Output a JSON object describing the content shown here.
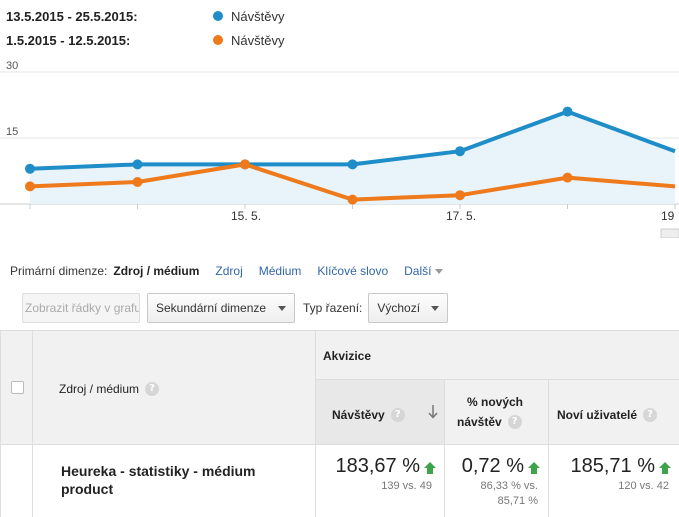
{
  "legend": [
    {
      "range": "13.5.2015 - 25.5.2015:",
      "label": "Návštěvy",
      "color": "#1f8dc7"
    },
    {
      "range": "1.5.2015 - 12.5.2015:",
      "label": "Návštěvy",
      "color": "#ee7a1b"
    }
  ],
  "chart_data": {
    "type": "line",
    "y_ticks": [
      "30",
      "15"
    ],
    "ylim": [
      0,
      30
    ],
    "x_ticks": [
      "15. 5.",
      "17. 5.",
      "19"
    ],
    "grid": true,
    "series": [
      {
        "values": [
          8,
          9,
          9,
          9,
          12,
          21,
          12
        ],
        "color": "#1f8dc7",
        "area": true
      },
      {
        "values": [
          4,
          5,
          9,
          1,
          2,
          6,
          4
        ],
        "color": "#ee7a1b",
        "area": false
      }
    ]
  },
  "dimensions": {
    "label": "Primární dimenze:",
    "active": "Zdroj / médium",
    "links": [
      "Zdroj",
      "Médium",
      "Klíčové slovo"
    ],
    "more": "Další"
  },
  "toolbar": {
    "plot_rows": "Zobrazit řádky v grafu",
    "secondary": "Sekundární dimenze",
    "sort_label": "Typ řazení:",
    "sort_value": "Výchozí"
  },
  "table": {
    "col_dimension": "Zdroj / médium",
    "group": "Akvizice",
    "col_visits": "Návštěvy",
    "col_new_pct_1": "% nových",
    "col_new_pct_2": "návštěv",
    "col_new_users": "Noví uživatelé",
    "row": {
      "name_1": "Heureka - statistiky - médium",
      "name_2": "product",
      "visits": "183,67 %",
      "visits_sub": "139 vs. 49",
      "new_pct": "0,72 %",
      "new_pct_sub_1": "86,33 % vs.",
      "new_pct_sub_2": "85,71 %",
      "new_users": "185,71 %",
      "new_users_sub": "120 vs. 42"
    }
  }
}
